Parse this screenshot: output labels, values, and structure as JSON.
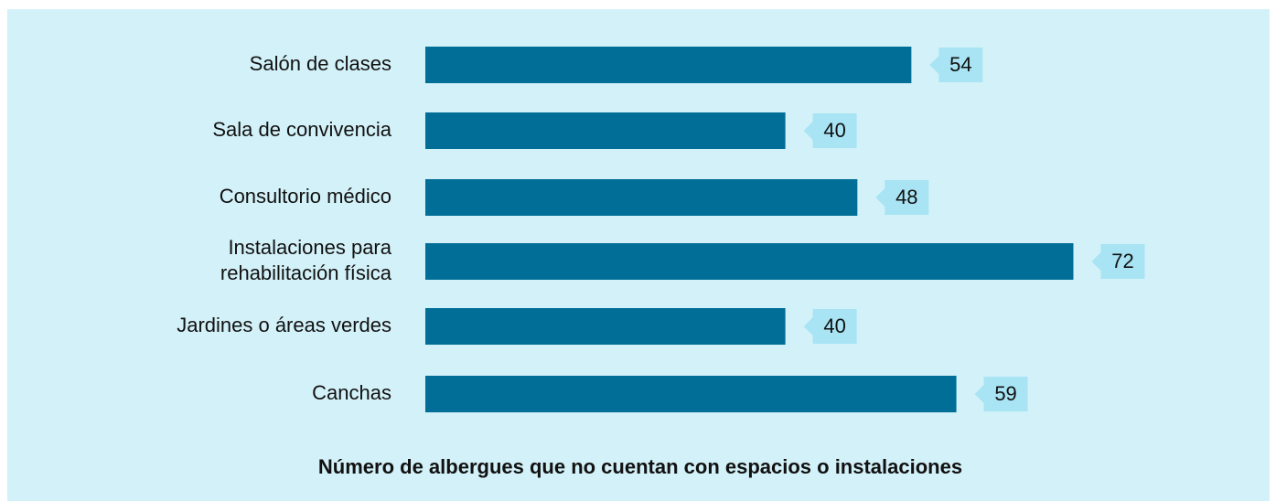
{
  "chart_data": {
    "type": "bar",
    "orientation": "horizontal",
    "title": "Número de albergues que no cuentan con espacios o instalaciones",
    "categories": [
      "Salón de clases",
      "Sala de convivencia",
      "Consultorio médico",
      "Instalaciones para\nrehabilitación física",
      "Jardines o áreas verdes",
      "Canchas"
    ],
    "values": [
      54,
      40,
      48,
      72,
      40,
      59
    ],
    "color": "#006e96",
    "label_color": "#a8e4f4",
    "background": "#d3f1f8"
  }
}
